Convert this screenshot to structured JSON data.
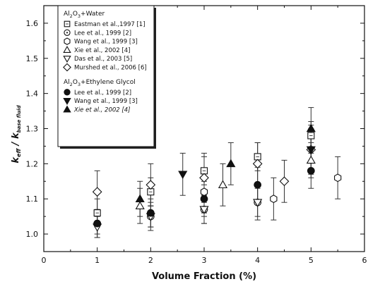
{
  "chart_data": {
    "type": "scatter",
    "xlabel": "Volume Fraction (%)",
    "ylabel_main": "k",
    "ylabel_sub1": "eff",
    "ylabel_sep": " / k",
    "ylabel_sub2": "base fluid",
    "xlim": [
      0,
      6
    ],
    "ylim": [
      0.95,
      1.65
    ],
    "x_ticks": [
      0,
      1,
      2,
      3,
      4,
      5,
      6
    ],
    "y_ticks": [
      1.0,
      1.1,
      1.2,
      1.3,
      1.4,
      1.5,
      1.6
    ],
    "x_tick_labels": [
      "0",
      "1",
      "2",
      "3",
      "4",
      "5",
      "6"
    ],
    "y_tick_labels": [
      "1.0",
      "1.1",
      "1.2",
      "1.3",
      "1.4",
      "1.5",
      "1.6"
    ],
    "grid": false,
    "legend_position": "top-left",
    "groups": [
      {
        "heading_pre": "Al",
        "heading_sub1": "2",
        "heading_mid": "O",
        "heading_sub2": "3",
        "heading_post": "+Water",
        "series": [
          {
            "name": "Eastman et al.,1997 [1]",
            "marker": "square",
            "filled": false,
            "points": [
              {
                "x": 1.0,
                "y": 1.06,
                "err": 0.04
              },
              {
                "x": 2.0,
                "y": 1.12,
                "err": 0.04
              },
              {
                "x": 3.0,
                "y": 1.18,
                "err": 0.04
              },
              {
                "x": 4.0,
                "y": 1.22,
                "err": 0.04
              },
              {
                "x": 5.0,
                "y": 1.28,
                "err": 0.04
              }
            ]
          },
          {
            "name": "Lee et al., 1999 [2]",
            "marker": "circle-dot",
            "filled": false,
            "points": [
              {
                "x": 1.0,
                "y": 1.03,
                "err": 0.03
              },
              {
                "x": 2.0,
                "y": 1.05,
                "err": 0.03
              },
              {
                "x": 3.0,
                "y": 1.07,
                "err": 0.04
              },
              {
                "x": 4.0,
                "y": 1.09,
                "err": 0.04
              }
            ]
          },
          {
            "name": "Wang et al., 1999 [3]",
            "marker": "hexagon",
            "filled": false,
            "points": [
              {
                "x": 3.0,
                "y": 1.12,
                "err": 0.06
              },
              {
                "x": 4.3,
                "y": 1.1,
                "err": 0.06
              },
              {
                "x": 5.5,
                "y": 1.16,
                "err": 0.06
              }
            ]
          },
          {
            "name": "Xie et al., 2002 [4]",
            "marker": "triangle-up",
            "filled": false,
            "points": [
              {
                "x": 1.8,
                "y": 1.08,
                "err": 0.05
              },
              {
                "x": 3.35,
                "y": 1.14,
                "err": 0.06
              },
              {
                "x": 5.0,
                "y": 1.21,
                "err": 0.05
              }
            ]
          },
          {
            "name": "Das et al., 2003 [5]",
            "marker": "triangle-down",
            "filled": false,
            "points": [
              {
                "x": 1.0,
                "y": 1.02,
                "err": 0.03
              },
              {
                "x": 2.0,
                "y": 1.05,
                "err": 0.04
              },
              {
                "x": 3.0,
                "y": 1.07,
                "err": 0.04
              },
              {
                "x": 4.0,
                "y": 1.09,
                "err": 0.05
              }
            ]
          },
          {
            "name": "Murshed et al., 2006 [6]",
            "marker": "diamond",
            "filled": false,
            "points": [
              {
                "x": 1.0,
                "y": 1.12,
                "err": 0.06
              },
              {
                "x": 2.0,
                "y": 1.14,
                "err": 0.06
              },
              {
                "x": 3.0,
                "y": 1.16,
                "err": 0.07
              },
              {
                "x": 4.0,
                "y": 1.2,
                "err": 0.06
              },
              {
                "x": 4.5,
                "y": 1.15,
                "err": 0.06
              },
              {
                "x": 5.0,
                "y": 1.24,
                "err": 0.07
              }
            ]
          }
        ]
      },
      {
        "heading_pre": "Al",
        "heading_sub1": "2",
        "heading_mid": "O",
        "heading_sub2": "3",
        "heading_post": "+Ethylene Glycol",
        "series": [
          {
            "name": "Lee et al., 1999 [2]",
            "marker": "circle",
            "filled": true,
            "points": [
              {
                "x": 1.0,
                "y": 1.03,
                "err": 0.04
              },
              {
                "x": 2.0,
                "y": 1.06,
                "err": 0.04
              },
              {
                "x": 3.0,
                "y": 1.1,
                "err": 0.05
              },
              {
                "x": 4.0,
                "y": 1.14,
                "err": 0.05
              },
              {
                "x": 5.0,
                "y": 1.18,
                "err": 0.05
              }
            ]
          },
          {
            "name": "Wang et al., 1999 [3]",
            "marker": "triangle-down",
            "filled": true,
            "points": [
              {
                "x": 2.6,
                "y": 1.17,
                "err": 0.06
              },
              {
                "x": 5.0,
                "y": 1.24,
                "err": 0.06
              }
            ]
          },
          {
            "name": "Xie et al., 2002 [4]",
            "italic": true,
            "marker": "triangle-up",
            "filled": true,
            "points": [
              {
                "x": 1.8,
                "y": 1.1,
                "err": 0.05
              },
              {
                "x": 3.5,
                "y": 1.2,
                "err": 0.06
              },
              {
                "x": 5.0,
                "y": 1.3,
                "err": 0.06
              }
            ]
          }
        ]
      }
    ]
  }
}
